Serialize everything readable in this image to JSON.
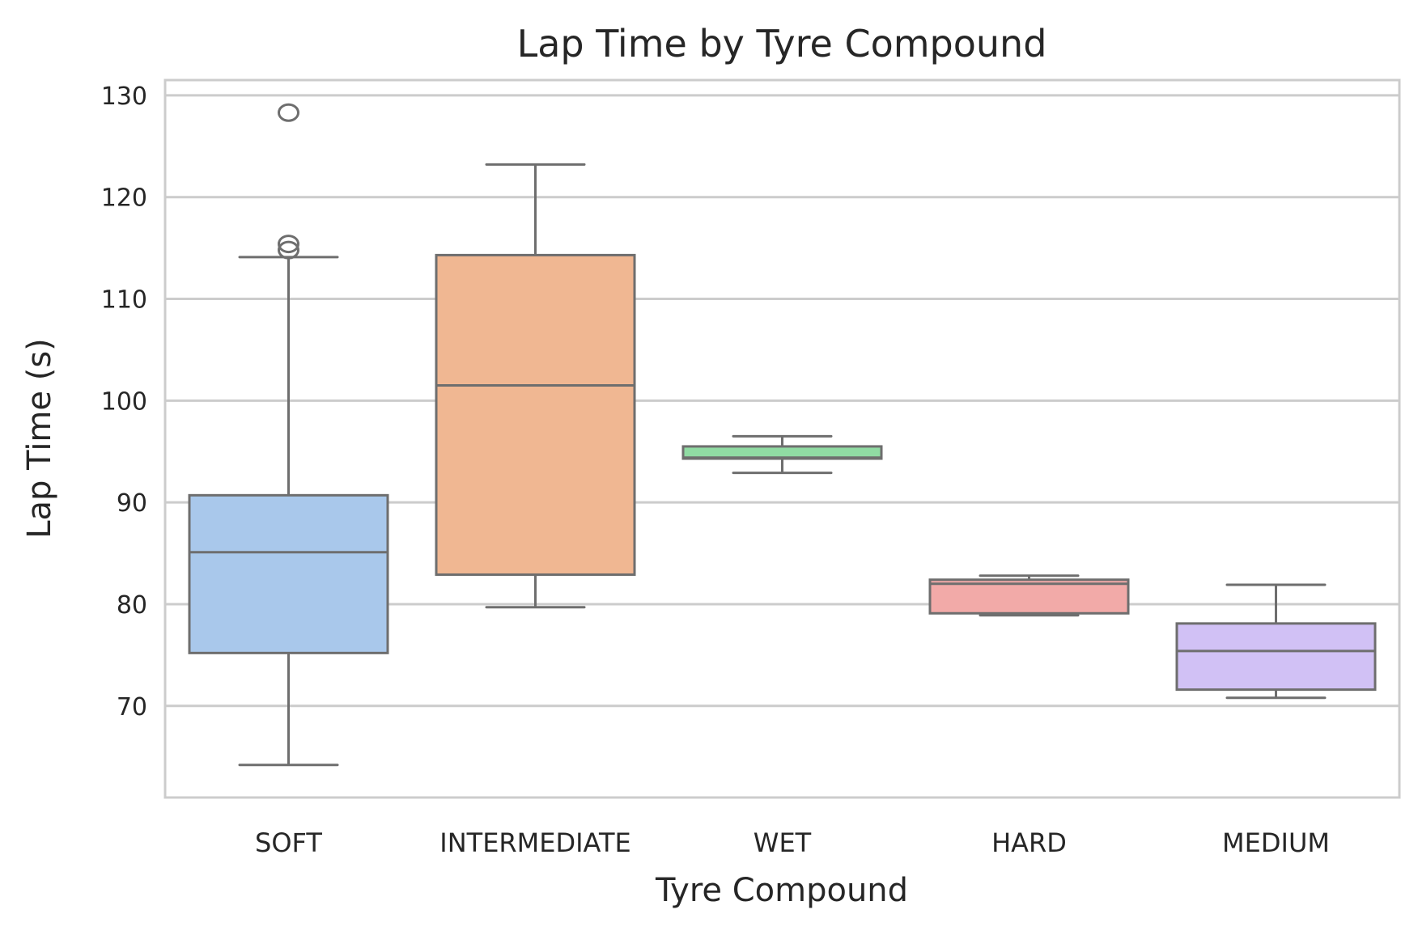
{
  "chart_data": {
    "type": "box",
    "title": "Lap Time by Tyre Compound",
    "xlabel": "Tyre Compound",
    "ylabel": "Lap Time (s)",
    "ylim": [
      61.0,
      131.5
    ],
    "yticks": [
      70,
      80,
      90,
      100,
      110,
      120,
      130
    ],
    "grid": true,
    "categories": [
      "SOFT",
      "INTERMEDIATE",
      "WET",
      "HARD",
      "MEDIUM"
    ],
    "boxes": [
      {
        "category": "SOFT",
        "whisker_low": 64.2,
        "q1": 75.2,
        "median": 85.1,
        "q3": 90.7,
        "whisker_high": 114.1,
        "outliers": [
          128.3,
          115.4,
          114.8
        ],
        "color": "#a9c8eb"
      },
      {
        "category": "INTERMEDIATE",
        "whisker_low": 79.7,
        "q1": 82.9,
        "median": 101.5,
        "q3": 114.3,
        "whisker_high": 123.2,
        "outliers": [],
        "color": "#f0b792"
      },
      {
        "category": "WET",
        "whisker_low": 92.9,
        "q1": 94.3,
        "median": 94.4,
        "q3": 95.5,
        "whisker_high": 96.5,
        "outliers": [],
        "color": "#90dba3"
      },
      {
        "category": "HARD",
        "whisker_low": 78.9,
        "q1": 79.1,
        "median": 82.0,
        "q3": 82.4,
        "whisker_high": 82.8,
        "outliers": [],
        "color": "#f2aaa8"
      },
      {
        "category": "MEDIUM",
        "whisker_low": 70.8,
        "q1": 71.6,
        "median": 75.4,
        "q3": 78.1,
        "whisker_high": 81.9,
        "outliers": [],
        "color": "#d1c1f5"
      }
    ],
    "line_color": "#6e6e6e",
    "grid_color": "#cccccc"
  }
}
